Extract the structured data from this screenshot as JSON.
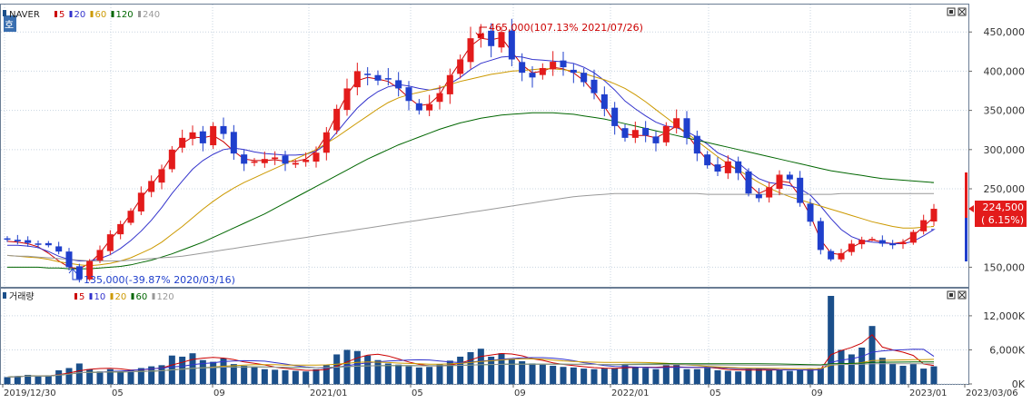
{
  "app": {
    "side_tab": "호",
    "price_legend": {
      "symbol": "NAVER",
      "items": [
        {
          "label": "5",
          "color": "#cc0000"
        },
        {
          "label": "20",
          "color": "#3333cc"
        },
        {
          "label": "60",
          "color": "#cc9900"
        },
        {
          "label": "120",
          "color": "#006600"
        },
        {
          "label": "240",
          "color": "#999999"
        }
      ]
    },
    "volume_legend": {
      "title": "거래량",
      "items": [
        {
          "label": "5",
          "color": "#cc0000"
        },
        {
          "label": "10",
          "color": "#3333cc"
        },
        {
          "label": "20",
          "color": "#cc9900"
        },
        {
          "label": "60",
          "color": "#006600"
        },
        {
          "label": "120",
          "color": "#999999"
        }
      ]
    },
    "current_price": "224,500",
    "current_change": "( 6.15%)",
    "max_annotation": "465,000(107.13% 2021/07/26)",
    "min_annotation": "135,000(-39.87% 2020/03/16)",
    "colors": {
      "up": "#e31b1b",
      "down": "#1f3fcc",
      "volume": "#1b4f8a",
      "ma5": "#cc0000",
      "ma20": "#3333cc",
      "ma60": "#cc9900",
      "ma120": "#006600",
      "ma240": "#999999",
      "grid": "#c8d4e0"
    }
  },
  "chart_data": [
    {
      "type": "candlestick",
      "title": "NAVER",
      "y_ticks": [
        "450,000",
        "400,000",
        "350,000",
        "300,000",
        "250,000",
        "150,000"
      ],
      "y_tick_values": [
        450000,
        400000,
        350000,
        300000,
        250000,
        150000
      ],
      "ylim": [
        125000,
        485000
      ],
      "x_ticks": [
        "2019/12/30",
        "05",
        "09",
        "2021/01",
        "05",
        "09",
        "2022/01",
        "05",
        "09",
        "2023/01",
        "2023/03/06"
      ],
      "grid": true,
      "series_close": [
        185000,
        183000,
        181000,
        180000,
        178000,
        170000,
        150000,
        135000,
        158000,
        172000,
        192000,
        205000,
        222000,
        245000,
        260000,
        275000,
        300000,
        315000,
        322000,
        308000,
        330000,
        320000,
        295000,
        282000,
        285000,
        288000,
        290000,
        282000,
        283000,
        287000,
        296000,
        322000,
        352000,
        378000,
        400000,
        395000,
        388000,
        390000,
        378000,
        362000,
        350000,
        358000,
        372000,
        395000,
        415000,
        442000,
        448000,
        432000,
        450000,
        415000,
        398000,
        392000,
        404000,
        412000,
        405000,
        398000,
        386000,
        372000,
        352000,
        330000,
        315000,
        325000,
        318000,
        308000,
        330000,
        340000,
        315000,
        295000,
        280000,
        272000,
        285000,
        270000,
        244000,
        238000,
        252000,
        268000,
        262000,
        232000,
        208000,
        172000,
        160000,
        168000,
        180000,
        185000,
        186000,
        180000,
        178000,
        182000,
        195000,
        210000,
        224500
      ],
      "ma_values": {
        "5": [
          183000,
          182000,
          180000,
          176000,
          168000,
          158000,
          150000,
          148000,
          155000,
          168000,
          185000,
          200000,
          218000,
          238000,
          255000,
          272000,
          292000,
          308000,
          316000,
          315000,
          318000,
          310000,
          298000,
          288000,
          286000,
          286000,
          287000,
          285000,
          285000,
          288000,
          298000,
          318000,
          345000,
          370000,
          388000,
          392000,
          390000,
          387000,
          378000,
          366000,
          356000,
          358000,
          370000,
          392000,
          412000,
          432000,
          442000,
          440000,
          443000,
          425000,
          408000,
          398000,
          400000,
          405000,
          403000,
          398000,
          388000,
          373000,
          355000,
          335000,
          320000,
          318000,
          318000,
          315000,
          322000,
          330000,
          320000,
          302000,
          286000,
          276000,
          280000,
          274000,
          256000,
          244000,
          250000,
          260000,
          258000,
          240000,
          216000,
          185000,
          168000,
          166000,
          175000,
          182000,
          185000,
          182000,
          180000,
          182000,
          190000,
          202000,
          214000
        ],
        "20": [
          178000,
          178000,
          177000,
          175000,
          170000,
          164000,
          160000,
          158000,
          158000,
          161000,
          166000,
          174000,
          184000,
          196000,
          210000,
          226000,
          244000,
          260000,
          275000,
          286000,
          294000,
          300000,
          302000,
          300000,
          297000,
          295000,
          294000,
          293000,
          293000,
          294000,
          298000,
          307000,
          322000,
          338000,
          353000,
          365000,
          374000,
          380000,
          383000,
          381000,
          378000,
          376000,
          378000,
          384000,
          392000,
          402000,
          410000,
          414000,
          418000,
          419000,
          418000,
          415000,
          414000,
          413000,
          412000,
          410000,
          405000,
          398000,
          388000,
          376000,
          362000,
          352000,
          343000,
          335000,
          330000,
          328000,
          323000,
          316000,
          307000,
          296000,
          290000,
          283000,
          272000,
          263000,
          258000,
          256000,
          254000,
          250000,
          242000,
          228000,
          212000,
          198000,
          189000,
          184000,
          182000,
          181000,
          180000,
          180000,
          183000,
          190000,
          198000
        ],
        "60": [
          165000,
          164000,
          163000,
          162000,
          160000,
          157000,
          155000,
          153000,
          152000,
          153000,
          155000,
          158000,
          162000,
          168000,
          174000,
          182000,
          192000,
          202000,
          213000,
          224000,
          234000,
          243000,
          251000,
          258000,
          264000,
          270000,
          276000,
          282000,
          288000,
          294000,
          300000,
          308000,
          316000,
          325000,
          334000,
          343000,
          352000,
          360000,
          366000,
          370000,
          373000,
          376000,
          379000,
          383000,
          387000,
          390000,
          393000,
          396000,
          398000,
          400000,
          401000,
          402000,
          403000,
          403000,
          402000,
          400000,
          397000,
          393000,
          389000,
          384000,
          378000,
          370000,
          361000,
          351000,
          341000,
          331000,
          321000,
          311000,
          301000,
          291000,
          282000,
          274000,
          266000,
          258000,
          251000,
          245000,
          240000,
          236000,
          232000,
          228000,
          224000,
          220000,
          216000,
          212000,
          208000,
          205000,
          202000,
          200000,
          200000,
          201000,
          202000
        ],
        "120": [
          150000,
          150000,
          150000,
          150000,
          149000,
          149000,
          148000,
          148000,
          148000,
          149000,
          150000,
          151000,
          153000,
          156000,
          159000,
          163000,
          167000,
          172000,
          177000,
          182000,
          188000,
          194000,
          200000,
          206000,
          212000,
          218000,
          225000,
          232000,
          239000,
          246000,
          253000,
          260000,
          267000,
          274000,
          281000,
          288000,
          294000,
          300000,
          306000,
          311000,
          316000,
          321000,
          326000,
          330000,
          334000,
          337000,
          340000,
          342000,
          344000,
          345000,
          346000,
          347000,
          347000,
          347000,
          346000,
          345000,
          343000,
          341000,
          339000,
          336000,
          333000,
          330000,
          327000,
          324000,
          321000,
          318000,
          315000,
          312000,
          309000,
          306000,
          303000,
          300000,
          297000,
          294000,
          291000,
          288000,
          285000,
          282000,
          279000,
          276000,
          273000,
          271000,
          269000,
          267000,
          265000,
          263000,
          262000,
          261000,
          260000,
          259000,
          258000
        ],
        "240": [
          165000,
          164000,
          164000,
          163000,
          162000,
          161000,
          160000,
          159000,
          158000,
          158000,
          158000,
          158000,
          159000,
          160000,
          161000,
          162000,
          163000,
          164000,
          166000,
          168000,
          170000,
          172000,
          174000,
          176000,
          178000,
          180000,
          182000,
          184000,
          186000,
          188000,
          190000,
          192000,
          194000,
          196000,
          198000,
          200000,
          202000,
          204000,
          206000,
          208000,
          210000,
          212000,
          214000,
          216000,
          218000,
          220000,
          222000,
          224000,
          226000,
          228000,
          230000,
          232000,
          234000,
          236000,
          238000,
          240000,
          241000,
          242000,
          243000,
          244000,
          244000,
          244000,
          244000,
          244000,
          244000,
          244000,
          244000,
          244000,
          243000,
          243000,
          243000,
          243000,
          243000,
          243000,
          243000,
          243000,
          243000,
          243000,
          243000,
          243000,
          243000,
          244000,
          244000,
          244000,
          244000,
          244000,
          244000,
          244000,
          244000,
          244000,
          244000
        ]
      }
    },
    {
      "type": "bar",
      "title": "거래량",
      "y_ticks": [
        "12,000K",
        "6,000K",
        "0K"
      ],
      "y_tick_values": [
        12000,
        6000,
        0
      ],
      "ylim": [
        0,
        15500
      ],
      "unit": "K",
      "values": [
        1200,
        1400,
        1600,
        1300,
        1500,
        2400,
        2800,
        3600,
        2600,
        2200,
        2600,
        2300,
        2500,
        2800,
        3100,
        3300,
        5000,
        4800,
        5400,
        4200,
        3900,
        4500,
        3500,
        3200,
        3000,
        2600,
        2500,
        2400,
        2300,
        2200,
        2600,
        3300,
        5200,
        6000,
        5800,
        5000,
        4200,
        3600,
        3400,
        3100,
        2900,
        3000,
        3500,
        4100,
        4800,
        5600,
        6200,
        4800,
        5400,
        4400,
        4000,
        3600,
        3400,
        3200,
        3000,
        2900,
        2700,
        2600,
        2700,
        2800,
        3500,
        3000,
        2800,
        2600,
        3300,
        3400,
        2600,
        2600,
        2800,
        2400,
        2300,
        2200,
        2600,
        2700,
        2500,
        2400,
        2300,
        2500,
        2600,
        2800,
        15500,
        6000,
        5200,
        6400,
        10200,
        4600,
        3600,
        3200,
        3500,
        2700,
        3100
      ]
    }
  ]
}
